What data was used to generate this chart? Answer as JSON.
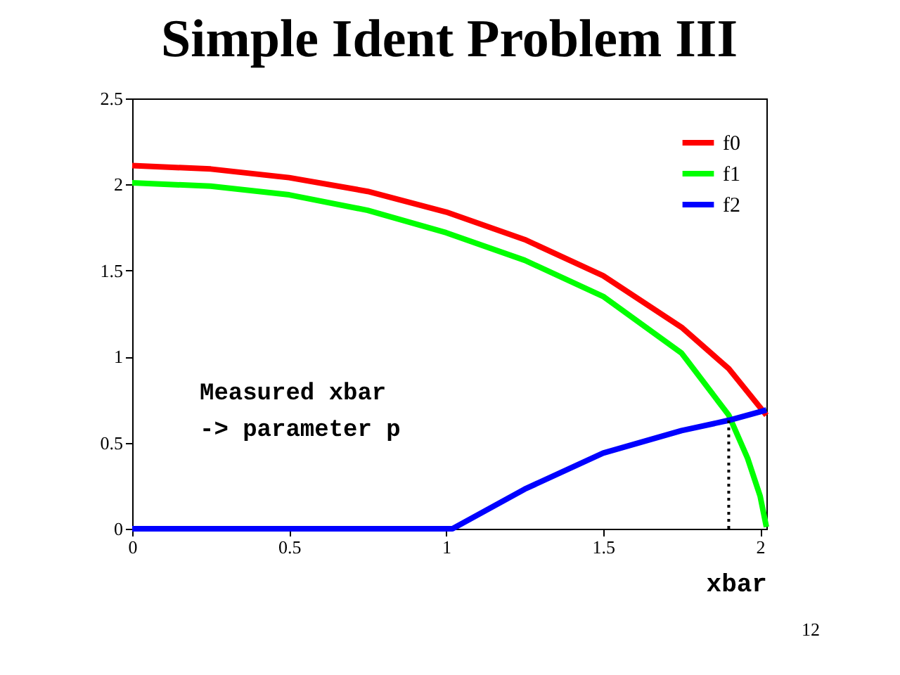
{
  "chart_data": {
    "type": "line",
    "title": "Simple Ident Problem III",
    "xlabel": "xbar",
    "annotations": [
      "Measured xbar\n-> parameter p",
      "12"
    ],
    "xlim": [
      0,
      2.02
    ],
    "xticks": [
      0,
      0.5,
      1,
      1.5,
      2
    ],
    "ylim": [
      0,
      2.5
    ],
    "yticks": [
      0,
      0.5,
      1,
      1.5,
      2,
      2.5
    ],
    "grid": false,
    "legend": "top right",
    "line_style": "solid",
    "series": [
      {
        "name": "f0",
        "color": "#ff0000",
        "x": [
          0,
          0.25,
          0.5,
          0.75,
          1,
          1.25,
          1.5,
          1.75,
          1.9,
          2.02
        ],
        "values": [
          2.11,
          2.09,
          2.04,
          1.96,
          1.84,
          1.68,
          1.47,
          1.17,
          0.93,
          0.66
        ]
      },
      {
        "name": "f1",
        "color": "#00ff00",
        "x": [
          0,
          0.25,
          0.5,
          0.75,
          1,
          1.25,
          1.5,
          1.75,
          1.9,
          1.96,
          2.0,
          2.02
        ],
        "values": [
          2.01,
          1.99,
          1.94,
          1.85,
          1.72,
          1.56,
          1.35,
          1.02,
          0.66,
          0.41,
          0.19,
          0.01
        ]
      },
      {
        "name": "f2",
        "color": "#0000ff",
        "x": [
          0,
          1.02,
          1.25,
          1.5,
          1.75,
          1.9,
          2.02
        ],
        "values": [
          0,
          0,
          0.23,
          0.44,
          0.57,
          0.63,
          0.69
        ]
      },
      {
        "type": "line",
        "line_style": "dotted",
        "color": "#000000",
        "x": [
          1.9,
          1.9
        ],
        "values": [
          0,
          0.63
        ]
      }
    ]
  }
}
